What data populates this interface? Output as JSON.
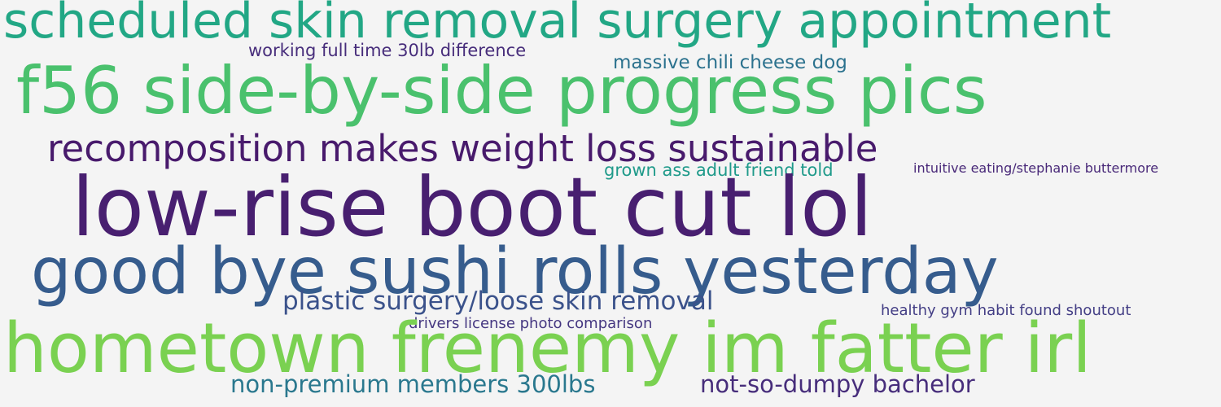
{
  "word_cloud": {
    "background_color": "#f4f4f4",
    "words": [
      {
        "text": "scheduled skin removal surgery appointment",
        "color": "#22a785"
      },
      {
        "text": "working full time 30lb difference",
        "color": "#472d7b"
      },
      {
        "text": "massive chili cheese dog",
        "color": "#2c728e"
      },
      {
        "text": "f56 side-by-side progress pics",
        "color": "#4ac16d"
      },
      {
        "text": "recomposition makes weight loss sustainable",
        "color": "#481a6c"
      },
      {
        "text": "grown ass adult friend told",
        "color": "#1f9a8a"
      },
      {
        "text": "intuitive eating/stephanie buttermore",
        "color": "#482878"
      },
      {
        "text": "low-rise boot cut lol",
        "color": "#481f70"
      },
      {
        "text": "good bye sushi rolls yesterday",
        "color": "#365c8d"
      },
      {
        "text": "plastic surgery/loose skin removal",
        "color": "#3b528b"
      },
      {
        "text": "healthy gym habit found shoutout",
        "color": "#433e85"
      },
      {
        "text": "drivers license photo comparison",
        "color": "#453781"
      },
      {
        "text": "hometown frenemy im fatter irl",
        "color": "#7ad151"
      },
      {
        "text": "non-premium members 300lbs",
        "color": "#2a788e"
      },
      {
        "text": "not-so-dumpy bachelor",
        "color": "#472d7b"
      }
    ]
  }
}
